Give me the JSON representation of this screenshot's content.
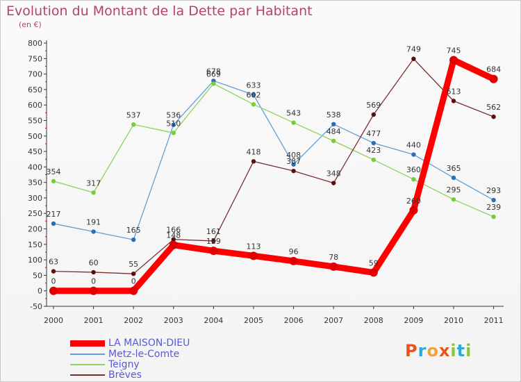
{
  "title": "Evolution du Montant de la Dette par Habitant",
  "subtitle": "(en €)",
  "brand": {
    "letters": [
      "P",
      "r",
      "o",
      "x",
      "i",
      "t",
      "i"
    ],
    "colors": [
      "#e8541e",
      "#2ea8d8",
      "#f1a33b",
      "#e8541e",
      "#8cc63f",
      "#2ea8d8",
      "#8cc63f"
    ]
  },
  "chart_data": {
    "type": "line",
    "title": "Evolution du Montant de la Dette par Habitant",
    "ylabel": "(en €)",
    "xlabel": "",
    "x": [
      "2000",
      "2001",
      "2002",
      "2003",
      "2004",
      "2005",
      "2006",
      "2007",
      "2008",
      "2009",
      "2010",
      "2011"
    ],
    "ylim": [
      -50,
      800
    ],
    "yticks": [
      "-50",
      "0",
      "50",
      "100",
      "150",
      "200",
      "250",
      "300",
      "350",
      "400",
      "450",
      "500",
      "550",
      "600",
      "650",
      "700",
      "750",
      "800"
    ],
    "grid": false,
    "legend_position": "bottom-left",
    "series": [
      {
        "name": "LA MAISON-DIEU",
        "color": "#ff0000",
        "marker": "#e00000",
        "values": [
          0,
          0,
          0,
          148,
          129,
          113,
          96,
          78,
          59,
          260,
          745,
          684
        ],
        "labels": [
          "0",
          "0",
          "0",
          "148",
          "129",
          "113",
          "96",
          "78",
          "59",
          "260",
          "745",
          "684"
        ]
      },
      {
        "name": "Metz-le-Comte",
        "color": "#5f9fd6",
        "marker": "#2a6fb5",
        "values": [
          217,
          191,
          165,
          536,
          678,
          633,
          408,
          538,
          477,
          440,
          365,
          293
        ],
        "labels": [
          "217",
          "191",
          "165",
          "536",
          "678",
          "633",
          "408",
          "538",
          "477",
          "440",
          "365",
          "293"
        ]
      },
      {
        "name": "Teigny",
        "color": "#8dd35f",
        "marker": "#7acb3a",
        "values": [
          354,
          317,
          537,
          510,
          669,
          602,
          543,
          484,
          423,
          360,
          295,
          239
        ],
        "labels": [
          "354",
          "317",
          "537",
          "510",
          "669",
          "602",
          "543",
          "484",
          "423",
          "360",
          "295",
          "239"
        ]
      },
      {
        "name": "Brèves",
        "color": "#7a2f2f",
        "marker": "#5a1010",
        "values": [
          63,
          60,
          55,
          166,
          161,
          418,
          387,
          348,
          569,
          749,
          613,
          562
        ],
        "labels": [
          "63",
          "60",
          "55",
          "166",
          "161",
          "418",
          "387",
          "348",
          "569",
          "749",
          "613",
          "562"
        ]
      }
    ]
  }
}
